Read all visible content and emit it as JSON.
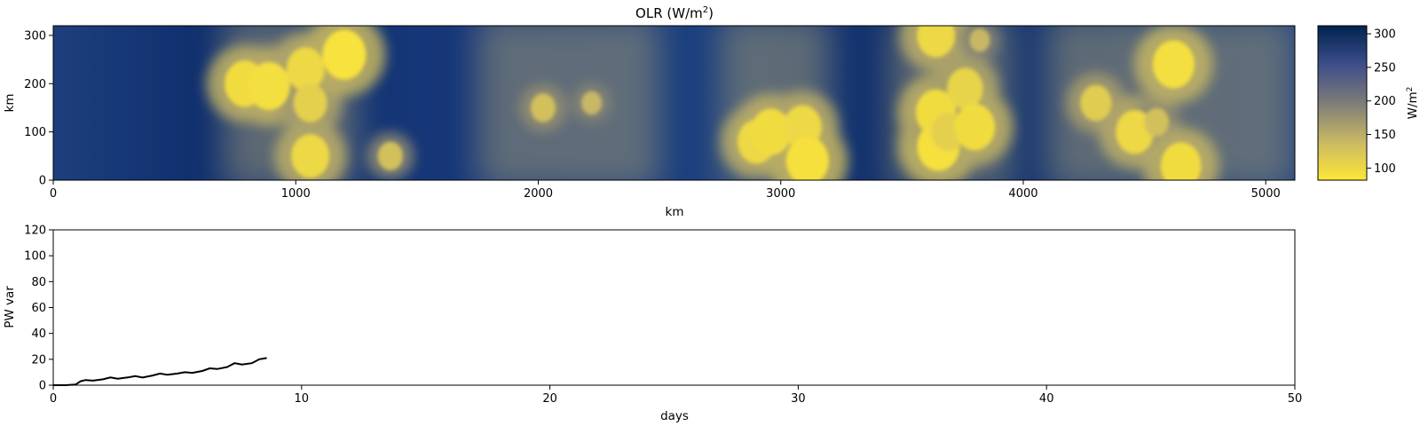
{
  "chart_data": [
    {
      "type": "heatmap",
      "title_main": "OLR (W/m",
      "title_sup": "2",
      "title_tail": ")",
      "xlabel": "km",
      "ylabel": "km",
      "xlim": [
        0,
        5120
      ],
      "ylim": [
        0,
        320
      ],
      "xticks": [
        0,
        1000,
        2000,
        3000,
        4000,
        5000
      ],
      "yticks": [
        0,
        100,
        200,
        300
      ],
      "colormap": "cividis",
      "colormap_reversed": true,
      "colorbar": {
        "label_main": "W/m",
        "label_sup": "2",
        "range": [
          82,
          312
        ],
        "ticks": [
          100,
          150,
          200,
          250,
          300
        ]
      },
      "cold_cloud_bands_km": [
        [
          700,
          1250
        ],
        [
          1750,
          2500
        ],
        [
          2750,
          3200
        ],
        [
          3450,
          3950
        ],
        [
          4100,
          5120
        ]
      ],
      "deep_convective_cells": [
        {
          "x": 790,
          "y": 200,
          "olr": 95
        },
        {
          "x": 890,
          "y": 195,
          "olr": 92
        },
        {
          "x": 1040,
          "y": 230,
          "olr": 100
        },
        {
          "x": 1060,
          "y": 160,
          "olr": 110
        },
        {
          "x": 1060,
          "y": 50,
          "olr": 100
        },
        {
          "x": 1200,
          "y": 260,
          "olr": 88
        },
        {
          "x": 1390,
          "y": 50,
          "olr": 130
        },
        {
          "x": 2020,
          "y": 150,
          "olr": 130
        },
        {
          "x": 2220,
          "y": 160,
          "olr": 140
        },
        {
          "x": 2900,
          "y": 80,
          "olr": 100
        },
        {
          "x": 2960,
          "y": 100,
          "olr": 95
        },
        {
          "x": 3090,
          "y": 110,
          "olr": 100
        },
        {
          "x": 3110,
          "y": 40,
          "olr": 90
        },
        {
          "x": 3640,
          "y": 300,
          "olr": 100
        },
        {
          "x": 3650,
          "y": 70,
          "olr": 90
        },
        {
          "x": 3640,
          "y": 140,
          "olr": 95
        },
        {
          "x": 3690,
          "y": 100,
          "olr": 110
        },
        {
          "x": 3760,
          "y": 190,
          "olr": 105
        },
        {
          "x": 3800,
          "y": 110,
          "olr": 95
        },
        {
          "x": 3820,
          "y": 290,
          "olr": 140
        },
        {
          "x": 4300,
          "y": 160,
          "olr": 115
        },
        {
          "x": 4460,
          "y": 100,
          "olr": 100
        },
        {
          "x": 4550,
          "y": 120,
          "olr": 130
        },
        {
          "x": 4620,
          "y": 240,
          "olr": 92
        },
        {
          "x": 4650,
          "y": 30,
          "olr": 95
        }
      ]
    },
    {
      "type": "line",
      "xlabel": "days",
      "ylabel": "PW var",
      "xlim": [
        0,
        50
      ],
      "ylim": [
        0,
        120
      ],
      "xticks": [
        0,
        10,
        20,
        30,
        40,
        50
      ],
      "yticks": [
        0,
        20,
        40,
        60,
        80,
        100,
        120
      ],
      "series": [
        {
          "color": "#000000",
          "x": [
            0,
            0.5,
            0.9,
            1.1,
            1.3,
            1.6,
            2.0,
            2.3,
            2.6,
            3.0,
            3.3,
            3.6,
            4.0,
            4.3,
            4.6,
            5.0,
            5.3,
            5.6,
            6.0,
            6.3,
            6.6,
            7.0,
            7.3,
            7.6,
            8.0,
            8.3,
            8.6
          ],
          "y": [
            0,
            0,
            0.5,
            3,
            4,
            3.5,
            4.5,
            6,
            5,
            6,
            7,
            6,
            7.5,
            9,
            8,
            9,
            10,
            9.5,
            11,
            13,
            12.5,
            14,
            17,
            16,
            17,
            20,
            21
          ]
        }
      ]
    }
  ]
}
